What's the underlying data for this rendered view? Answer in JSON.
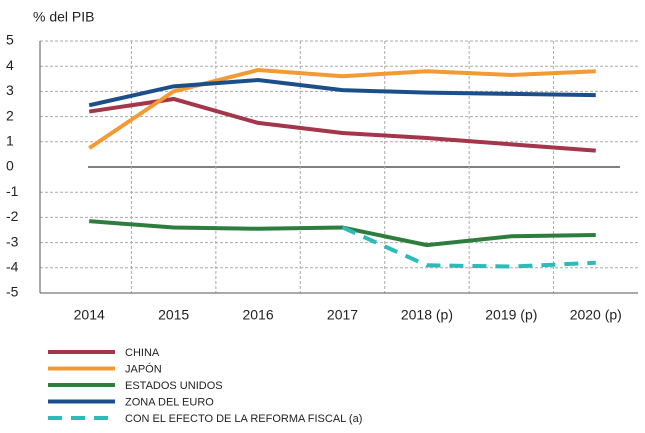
{
  "chart_data": {
    "type": "line",
    "y_label": "% del PIB",
    "categories": [
      "2014",
      "2015",
      "2016",
      "2017",
      "2018 (p)",
      "2019 (p)",
      "2020 (p)"
    ],
    "series": [
      {
        "name": "CHINA",
        "color": "#a3364a",
        "values": [
          2.2,
          2.7,
          1.75,
          1.35,
          1.15,
          0.9,
          0.65
        ]
      },
      {
        "name": "JAPÓN",
        "color": "#f39a33",
        "values": [
          0.75,
          3.0,
          3.85,
          3.6,
          3.8,
          3.65,
          3.8
        ]
      },
      {
        "name": "ESTADOS UNIDOS",
        "color": "#2e7d3e",
        "values": [
          -2.15,
          -2.4,
          -2.45,
          -2.4,
          -3.1,
          -2.75,
          -2.7
        ]
      },
      {
        "name": "ZONA DEL EURO",
        "color": "#1c4f8a",
        "values": [
          2.45,
          3.2,
          3.45,
          3.05,
          2.95,
          2.9,
          2.85
        ]
      },
      {
        "name": "CON EL EFECTO DE LA REFORMA FISCAL (a)",
        "color": "#2bbbb8",
        "dashed": true,
        "values": [
          null,
          null,
          null,
          -2.4,
          -3.9,
          -3.95,
          -3.8
        ]
      }
    ],
    "ylim": [
      -5,
      5
    ],
    "yticks": [
      -5,
      -4,
      -3,
      -2,
      -1,
      0,
      1,
      2,
      3,
      4,
      5
    ],
    "grid": true,
    "legend": "bottom"
  }
}
